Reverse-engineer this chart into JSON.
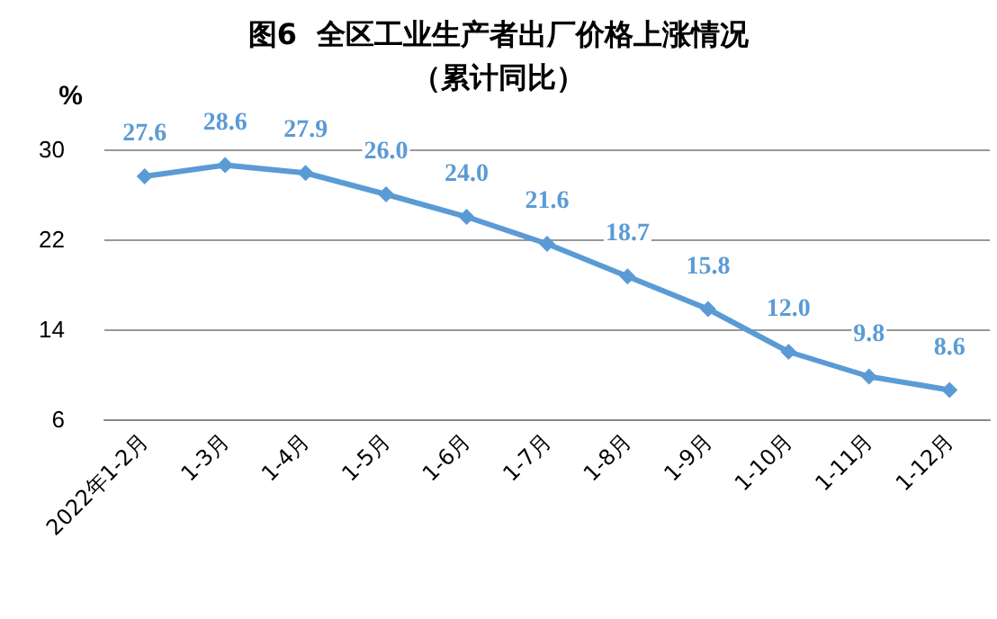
{
  "chart_data": {
    "type": "line",
    "title": "图6  全区工业生产者出厂价格上涨情况",
    "subtitle": "（累计同比）",
    "ylabel": "%",
    "categories": [
      "2022年1-2月",
      "1-3月",
      "1-4月",
      "1-5月",
      "1-6月",
      "1-7月",
      "1-8月",
      "1-9月",
      "1-10月",
      "1-11月",
      "1-12月"
    ],
    "series": [
      {
        "color": "#5b9bd5",
        "values": [
          27.6,
          28.6,
          27.9,
          26.0,
          24.0,
          21.6,
          18.7,
          15.8,
          12.0,
          9.8,
          8.6
        ],
        "value_labels": [
          "27.6",
          "28.6",
          "27.9",
          "26.0",
          "24.0",
          "21.6",
          "18.7",
          "15.8",
          "12.0",
          "9.8",
          "8.6"
        ]
      }
    ],
    "ylim": [
      6,
      30
    ],
    "yticks": [
      6,
      14,
      22,
      30
    ],
    "grid": "y",
    "marker": "diamond",
    "line_style": "solid"
  }
}
